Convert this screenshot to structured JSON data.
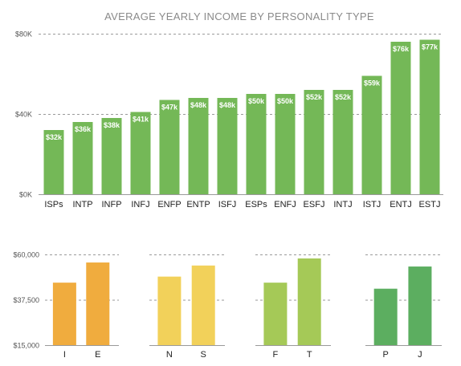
{
  "chart_data": [
    {
      "type": "bar",
      "title": "AVERAGE YEARLY INCOME BY PERSONALITY TYPE",
      "xlabel": "",
      "ylabel": "",
      "ylim": [
        0,
        80000
      ],
      "yticks": [
        0,
        40000,
        80000
      ],
      "ytick_labels": [
        "$0K",
        "$40K",
        "$80K"
      ],
      "grid": true,
      "color": "#74b857",
      "categories": [
        "ISPs",
        "INTP",
        "INFP",
        "INFJ",
        "ENFP",
        "ENTP",
        "ISFJ",
        "ESPs",
        "ENFJ",
        "ESFJ",
        "INTJ",
        "ISTJ",
        "ENTJ",
        "ESTJ"
      ],
      "values": [
        32000,
        36000,
        38000,
        41000,
        47000,
        48000,
        48000,
        50000,
        50000,
        52000,
        52000,
        59000,
        76000,
        77000
      ],
      "data_labels": [
        "$32k",
        "$36k",
        "$38k",
        "$41k",
        "$47k",
        "$48k",
        "$48k",
        "$50k",
        "$50k",
        "$52k",
        "$52k",
        "$59k",
        "$76k",
        "$77k"
      ]
    },
    {
      "type": "bar",
      "title": "",
      "ylim": [
        15000,
        60000
      ],
      "yticks": [
        15000,
        37500,
        60000
      ],
      "ytick_labels": [
        "$15,000",
        "$37,500",
        "$60,000"
      ],
      "grid": true,
      "groups": [
        {
          "categories": [
            "I",
            "E"
          ],
          "values": [
            46000,
            56000
          ],
          "color": "#f0ac3e"
        },
        {
          "categories": [
            "N",
            "S"
          ],
          "values": [
            49000,
            54500
          ],
          "color": "#f2d15a"
        },
        {
          "categories": [
            "F",
            "T"
          ],
          "values": [
            46000,
            58000
          ],
          "color": "#a5c957"
        },
        {
          "categories": [
            "P",
            "J"
          ],
          "values": [
            43000,
            54000
          ],
          "color": "#5cae60"
        }
      ]
    }
  ]
}
